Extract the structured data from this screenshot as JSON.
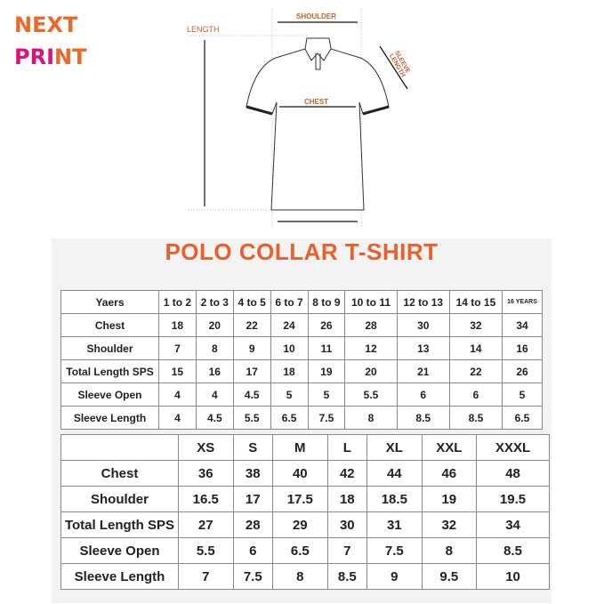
{
  "logo": {
    "line1": "NEXT",
    "line2": "PRINT"
  },
  "diagram": {
    "labels": {
      "shoulder": "SHOULDER",
      "length": "LENGTH",
      "chest": "CHEST",
      "sleeve_length": "SLEEVE LENGTH"
    }
  },
  "title": "POLO COLLAR T-SHIRT",
  "kids_table": {
    "header": [
      "Yaers",
      "1 to 2",
      "2 to 3",
      "4 to 5",
      "6 to 7",
      "8 to 9",
      "10 to 11",
      "12 to 13",
      "14 to 15",
      "16 YEARS"
    ],
    "rows": [
      [
        "Chest",
        "18",
        "20",
        "22",
        "24",
        "26",
        "28",
        "30",
        "32",
        "34"
      ],
      [
        "Shoulder",
        "7",
        "8",
        "9",
        "10",
        "11",
        "12",
        "13",
        "14",
        "16"
      ],
      [
        "Total Length SPS",
        "15",
        "16",
        "17",
        "18",
        "19",
        "20",
        "21",
        "22",
        "26"
      ],
      [
        "Sleeve Open",
        "4",
        "4",
        "4.5",
        "5",
        "5",
        "5.5",
        "6",
        "6",
        "5"
      ],
      [
        "Sleeve Length",
        "4",
        "4.5",
        "5.5",
        "6.5",
        "7.5",
        "8",
        "8.5",
        "8.5",
        "6.5"
      ]
    ]
  },
  "adult_table": {
    "header": [
      "",
      "XS",
      "S",
      "M",
      "L",
      "XL",
      "XXL",
      "XXXL"
    ],
    "rows": [
      [
        "Chest",
        "36",
        "38",
        "40",
        "42",
        "44",
        "46",
        "48"
      ],
      [
        "Shoulder",
        "16.5",
        "17",
        "17.5",
        "18",
        "18.5",
        "19",
        "19.5"
      ],
      [
        "Total Length SPS",
        "27",
        "28",
        "29",
        "30",
        "31",
        "32",
        "34"
      ],
      [
        "Sleeve Open",
        "5.5",
        "6",
        "6.5",
        "7",
        "7.5",
        "8",
        "8.5"
      ],
      [
        "Sleeve Length",
        "7",
        "7.5",
        "8",
        "8.5",
        "9",
        "9.5",
        "10"
      ]
    ]
  },
  "colors": {
    "orange": "#e8602c",
    "magenta": "#d6157c"
  }
}
